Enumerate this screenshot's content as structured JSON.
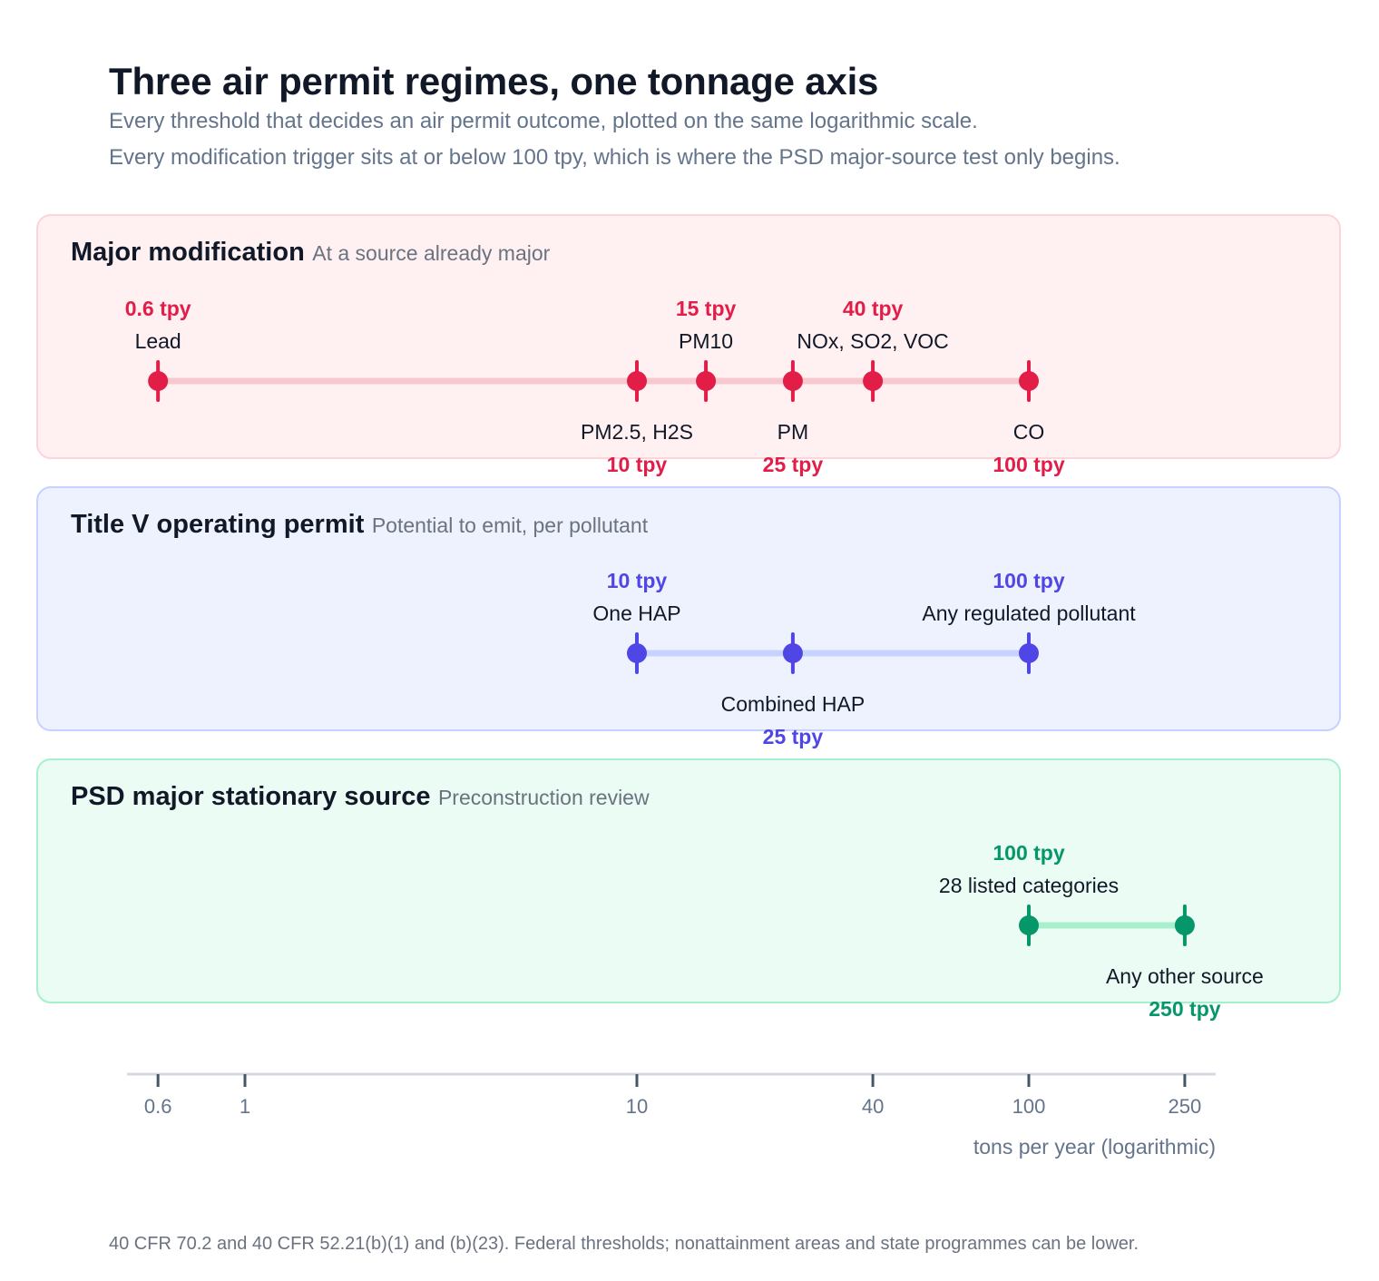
{
  "title": "Three air permit regimes, one tonnage axis",
  "subtitle_lines": [
    "Every threshold that decides an air permit outcome, plotted on the same logarithmic scale.",
    "Every modification trigger sits at or below 100 tpy, which is where the PSD major-source test only begins."
  ],
  "footnote": "40 CFR 70.2 and 40 CFR 52.21(b)(1) and (b)(23). Federal thresholds; nonattainment areas and state programmes can be lower.",
  "colors": {
    "major_modification": "#e11d48",
    "title_v": "#4f46e5",
    "psd": "#059669"
  },
  "chart_data": {
    "type": "scatter",
    "x_scale": "log",
    "x_axis": {
      "label": "tons per year (logarithmic)",
      "ticks": [
        {
          "value": 0.6,
          "label": "0.6"
        },
        {
          "value": 1,
          "label": "1"
        },
        {
          "value": 10,
          "label": "10"
        },
        {
          "value": 40,
          "label": "40"
        },
        {
          "value": 100,
          "label": "100"
        },
        {
          "value": 250,
          "label": "250"
        }
      ]
    },
    "panels": [
      {
        "name": "Major modification",
        "subtitle": "At a source already major",
        "color_key": "major_modification",
        "points": [
          {
            "value": 0.6,
            "value_label": "0.6 tpy",
            "label": "Lead",
            "side": "above"
          },
          {
            "value": 10,
            "value_label": "10 tpy",
            "label": "PM2.5, H2S",
            "side": "below"
          },
          {
            "value": 15,
            "value_label": "15 tpy",
            "label": "PM10",
            "side": "above"
          },
          {
            "value": 25,
            "value_label": "25 tpy",
            "label": "PM",
            "side": "below"
          },
          {
            "value": 40,
            "value_label": "40 tpy",
            "label": "NOx, SO2, VOC",
            "side": "above"
          },
          {
            "value": 100,
            "value_label": "100 tpy",
            "label": "CO",
            "side": "below"
          }
        ]
      },
      {
        "name": "Title V operating permit",
        "subtitle": "Potential to emit, per pollutant",
        "color_key": "title_v",
        "points": [
          {
            "value": 10,
            "value_label": "10 tpy",
            "label": "One HAP",
            "side": "above"
          },
          {
            "value": 25,
            "value_label": "25 tpy",
            "label": "Combined HAP",
            "side": "below"
          },
          {
            "value": 100,
            "value_label": "100 tpy",
            "label": "Any regulated pollutant",
            "side": "above"
          }
        ]
      },
      {
        "name": "PSD major stationary source",
        "subtitle": "Preconstruction review",
        "color_key": "psd",
        "points": [
          {
            "value": 100,
            "value_label": "100 tpy",
            "label": "28 listed categories",
            "side": "above"
          },
          {
            "value": 250,
            "value_label": "250 tpy",
            "label": "Any other source",
            "side": "below"
          }
        ]
      }
    ]
  }
}
